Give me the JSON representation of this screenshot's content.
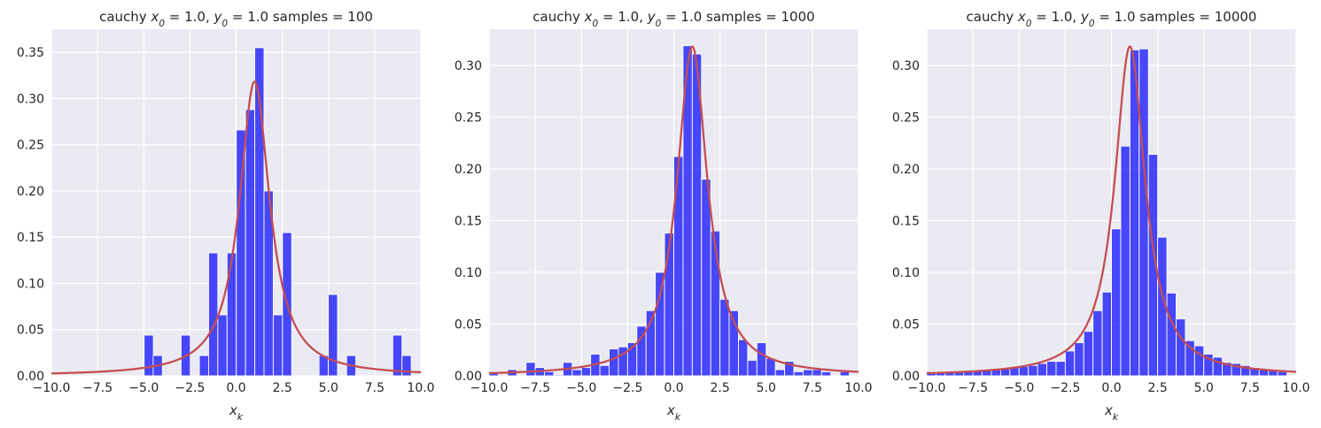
{
  "chart_data": [
    {
      "type": "bar",
      "title_prefix": "cauchy ",
      "title_suffix": "samples = 100",
      "xlabel": "x_k",
      "xlim": [
        -10,
        10
      ],
      "ylim": [
        0,
        0.375
      ],
      "xticks": [
        "−10.0",
        "−7.5",
        "−5.0",
        "−2.5",
        "0.0",
        "2.5",
        "5.0",
        "7.5",
        "10.0"
      ],
      "yticks": [
        "0.00",
        "0.05",
        "0.10",
        "0.15",
        "0.20",
        "0.25",
        "0.30",
        "0.35"
      ],
      "hist_left": [
        -4.98,
        -4.49,
        -2.98,
        -1.99,
        -1.49,
        -0.99,
        -0.49,
        0.01,
        0.51,
        1.01,
        1.51,
        2.01,
        2.51,
        4.49,
        4.99,
        5.98,
        8.48,
        8.98
      ],
      "hist_width": 0.5,
      "hist_density": [
        0.044,
        0.022,
        0.044,
        0.022,
        0.133,
        0.066,
        0.133,
        0.266,
        0.288,
        0.355,
        0.2,
        0.066,
        0.155,
        0.022,
        0.088,
        0.022,
        0.044,
        0.022
      ],
      "pdf": {
        "series": "cauchy pdf",
        "x0": 1.0,
        "gamma": 1.0,
        "color": "#c44e52"
      }
    },
    {
      "type": "bar",
      "title_prefix": "cauchy ",
      "title_suffix": "samples = 1000",
      "xlabel": "x_k",
      "xlim": [
        -10,
        10
      ],
      "ylim": [
        0,
        0.335
      ],
      "xticks": [
        "−10.0",
        "−7.5",
        "−5.0",
        "−2.5",
        "0.0",
        "2.5",
        "5.0",
        "7.5",
        "10.0"
      ],
      "yticks": [
        "0.00",
        "0.05",
        "0.10",
        "0.15",
        "0.20",
        "0.25",
        "0.30"
      ],
      "hist_left": [
        -10.0,
        -9.5,
        -9.0,
        -8.5,
        -8.0,
        -7.5,
        -7.0,
        -6.5,
        -6.0,
        -5.5,
        -5.0,
        -4.5,
        -4.0,
        -3.5,
        -3.0,
        -2.5,
        -2.0,
        -1.5,
        -1.0,
        -0.5,
        0.0,
        0.5,
        1.0,
        1.5,
        2.0,
        2.5,
        3.0,
        3.5,
        4.0,
        4.5,
        5.0,
        5.5,
        6.0,
        6.5,
        7.0,
        7.5,
        8.0,
        8.5,
        9.0
      ],
      "hist_width": 0.5,
      "hist_density": [
        0.004,
        0.0,
        0.006,
        0.0,
        0.013,
        0.008,
        0.004,
        0.001,
        0.013,
        0.006,
        0.008,
        0.021,
        0.01,
        0.026,
        0.028,
        0.032,
        0.048,
        0.063,
        0.1,
        0.138,
        0.212,
        0.319,
        0.311,
        0.19,
        0.14,
        0.074,
        0.063,
        0.035,
        0.015,
        0.032,
        0.017,
        0.006,
        0.014,
        0.004,
        0.006,
        0.006,
        0.004,
        0.0,
        0.004
      ],
      "pdf": {
        "series": "cauchy pdf",
        "x0": 1.0,
        "gamma": 1.0,
        "color": "#c44e52"
      }
    },
    {
      "type": "bar",
      "title_prefix": "cauchy ",
      "title_suffix": "samples = 10000",
      "xlabel": "x_k",
      "xlim": [
        -10,
        10
      ],
      "ylim": [
        0,
        0.335
      ],
      "xticks": [
        "−10.0",
        "−7.5",
        "−5.0",
        "−2.5",
        "0.0",
        "2.5",
        "5.0",
        "7.5",
        "10.0"
      ],
      "yticks": [
        "0.00",
        "0.05",
        "0.10",
        "0.15",
        "0.20",
        "0.25",
        "0.30"
      ],
      "hist_left": [
        -10.0,
        -9.5,
        -9.0,
        -8.5,
        -8.0,
        -7.5,
        -7.0,
        -6.5,
        -6.0,
        -5.5,
        -5.0,
        -4.5,
        -4.0,
        -3.5,
        -3.0,
        -2.5,
        -2.0,
        -1.5,
        -1.0,
        -0.5,
        0.0,
        0.5,
        1.0,
        1.5,
        2.0,
        2.5,
        3.0,
        3.5,
        4.0,
        4.5,
        5.0,
        5.5,
        6.0,
        6.5,
        7.0,
        7.5,
        8.0,
        8.5,
        9.0
      ],
      "hist_width": 0.5,
      "hist_density": [
        0.004,
        0.004,
        0.004,
        0.004,
        0.004,
        0.005,
        0.006,
        0.006,
        0.007,
        0.008,
        0.009,
        0.01,
        0.012,
        0.014,
        0.014,
        0.024,
        0.032,
        0.043,
        0.063,
        0.081,
        0.142,
        0.222,
        0.315,
        0.316,
        0.214,
        0.134,
        0.08,
        0.055,
        0.034,
        0.029,
        0.021,
        0.018,
        0.013,
        0.012,
        0.01,
        0.008,
        0.006,
        0.005,
        0.004
      ],
      "pdf": {
        "series": "cauchy pdf",
        "x0": 1.0,
        "gamma": 1.0,
        "color": "#c44e52"
      }
    }
  ]
}
